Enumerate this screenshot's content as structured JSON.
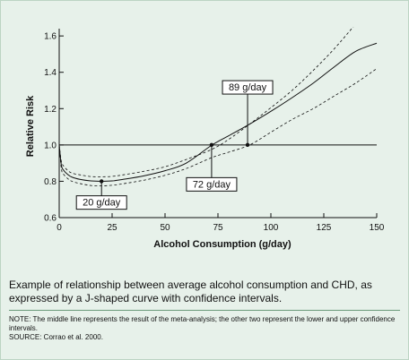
{
  "chart_data": {
    "type": "line",
    "title": "",
    "xlabel": "Alcohol Consumption (g/day)",
    "ylabel": "Relative Risk",
    "xlim": [
      0,
      150
    ],
    "ylim": [
      0.6,
      1.65
    ],
    "x_ticks": [
      0,
      25,
      50,
      75,
      100,
      125,
      150
    ],
    "x_tick_labels": [
      "0",
      "25",
      "50",
      "75",
      "100",
      "125",
      "150"
    ],
    "y_ticks": [
      0.6,
      0.8,
      1.0,
      1.2,
      1.4,
      1.6
    ],
    "y_tick_labels": [
      "0.6",
      "0.8",
      "1.0",
      "1.2",
      "1.4",
      "1.6"
    ],
    "reference_line": 1.0,
    "grid": false,
    "series": [
      {
        "style": "dashed",
        "x": [
          0,
          1,
          2,
          4,
          6,
          10,
          15,
          20,
          25,
          30,
          40,
          50,
          60,
          72,
          80,
          90,
          100,
          110,
          120,
          130,
          140
        ],
        "y": [
          1.0,
          0.91,
          0.885,
          0.86,
          0.845,
          0.835,
          0.826,
          0.825,
          0.827,
          0.835,
          0.855,
          0.88,
          0.92,
          0.975,
          1.03,
          1.115,
          1.205,
          1.3,
          1.41,
          1.53,
          1.665
        ]
      },
      {
        "style": "solid",
        "x": [
          0,
          1,
          2,
          4,
          6,
          10,
          15,
          20,
          25,
          30,
          40,
          50,
          60,
          72,
          80,
          90,
          100,
          110,
          120,
          130,
          140,
          150
        ],
        "y": [
          1.0,
          0.89,
          0.862,
          0.838,
          0.823,
          0.81,
          0.802,
          0.8,
          0.802,
          0.81,
          0.83,
          0.858,
          0.9,
          0.998,
          1.05,
          1.115,
          1.185,
          1.26,
          1.34,
          1.43,
          1.515,
          1.56
        ]
      },
      {
        "style": "dashed",
        "x": [
          0,
          1,
          2,
          4,
          6,
          10,
          15,
          20,
          25,
          30,
          40,
          50,
          60,
          72,
          80,
          90,
          100,
          110,
          120,
          130,
          140,
          150
        ],
        "y": [
          1.0,
          0.87,
          0.84,
          0.815,
          0.8,
          0.787,
          0.777,
          0.775,
          0.778,
          0.786,
          0.806,
          0.833,
          0.87,
          0.93,
          0.96,
          1.0,
          1.07,
          1.14,
          1.2,
          1.27,
          1.34,
          1.42
        ]
      }
    ],
    "annotations": [
      {
        "label": "20 g/day",
        "x": 20,
        "y": 0.8,
        "line_to": 0.72
      },
      {
        "label": "72 g/day",
        "x": 72,
        "y": 1.0,
        "line_to": 0.82
      },
      {
        "label": "89 g/day",
        "x": 89,
        "y": 1.0,
        "line_to": 1.28
      }
    ]
  },
  "caption": "Example of relationship between average alcohol consumption and CHD, as expressed by a J-shaped curve with confidence intervals.",
  "note": "NOTE: The middle line represents the result of the meta-analysis; the other two represent the lower and upper confidence intervals.",
  "source": "SOURCE: Corrao et al. 2000."
}
